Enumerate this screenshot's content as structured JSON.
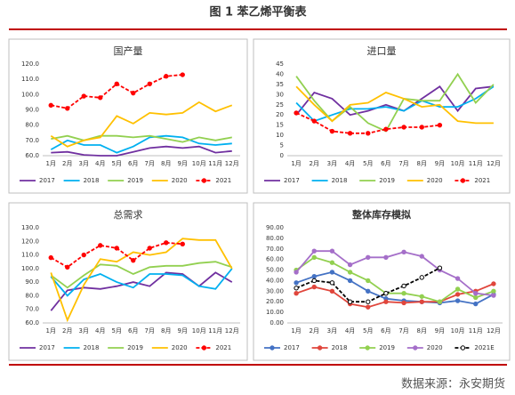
{
  "title": "图 1 苯乙烯平衡表",
  "source": "数据来源：永安期货",
  "chart_data": [
    {
      "type": "line",
      "title": "国产量",
      "categories": [
        "1月",
        "2月",
        "3月",
        "4月",
        "5月",
        "6月",
        "7月",
        "8月",
        "9月",
        "10月",
        "11月",
        "12月"
      ],
      "ylim": [
        60,
        120
      ],
      "yticks": [
        {
          "value": 60,
          "label": "60.0"
        },
        {
          "value": 70,
          "label": "70.0"
        },
        {
          "value": 80,
          "label": "80.0"
        },
        {
          "value": 90,
          "label": "90.0"
        },
        {
          "value": 100,
          "label": "100.0"
        },
        {
          "value": 110,
          "label": "110.0"
        },
        {
          "value": 120,
          "label": "120.0"
        }
      ],
      "grid": false,
      "series": [
        {
          "name": "2017",
          "color": "#7030a0",
          "values": [
            62,
            62.5,
            60.5,
            60,
            60,
            62.5,
            65,
            66,
            65,
            66,
            62,
            63
          ]
        },
        {
          "name": "2018",
          "color": "#00b0f0",
          "values": [
            64,
            70,
            67,
            67,
            62,
            66,
            72,
            73,
            72,
            68,
            67,
            68
          ]
        },
        {
          "name": "2019",
          "color": "#92d050",
          "values": [
            71,
            73,
            70,
            73,
            73,
            72,
            73,
            71,
            69,
            72,
            70,
            72
          ]
        },
        {
          "name": "2020",
          "color": "#ffc000",
          "values": [
            73,
            66,
            70,
            72,
            86,
            81,
            88,
            87,
            88,
            95,
            89,
            93
          ]
        },
        {
          "name": "2021",
          "color": "#ff0000",
          "dashed": true,
          "markers": true,
          "values": [
            93,
            91,
            99,
            98,
            107,
            101,
            107,
            112,
            113,
            null,
            null,
            null
          ]
        }
      ]
    },
    {
      "type": "line",
      "title": "进口量",
      "categories": [
        "1月",
        "2月",
        "3月",
        "4月",
        "5月",
        "6月",
        "7月",
        "8月",
        "9月",
        "10月",
        "11月",
        "12月"
      ],
      "ylim": [
        0,
        45
      ],
      "yticks": [
        0,
        5,
        10,
        15,
        20,
        25,
        30,
        35,
        40,
        45
      ],
      "grid": false,
      "series": [
        {
          "name": "2017",
          "color": "#7030a0",
          "values": [
            20,
            31,
            28,
            20,
            22,
            25,
            22,
            28,
            34,
            22,
            33,
            34
          ]
        },
        {
          "name": "2018",
          "color": "#00b0f0",
          "values": [
            26,
            17,
            20,
            23,
            23,
            24,
            22,
            27,
            24,
            24,
            28,
            34
          ]
        },
        {
          "name": "2019",
          "color": "#92d050",
          "values": [
            39,
            27,
            17,
            24,
            16,
            12,
            28,
            27,
            27,
            40,
            26,
            35
          ]
        },
        {
          "name": "2020",
          "color": "#ffc000",
          "values": [
            34,
            25,
            17,
            25,
            26,
            31,
            28,
            24,
            25,
            17,
            16,
            16
          ]
        },
        {
          "name": "2021",
          "color": "#ff0000",
          "dashed": true,
          "markers": true,
          "values": [
            21,
            17,
            12,
            11,
            11,
            13,
            14,
            14,
            15,
            null,
            null,
            null
          ]
        }
      ]
    },
    {
      "type": "line",
      "title": "总需求",
      "categories": [
        "1月",
        "2月",
        "3月",
        "4月",
        "5月",
        "6月",
        "7月",
        "8月",
        "9月",
        "10月",
        "11月",
        "12月"
      ],
      "ylim": [
        60,
        130
      ],
      "yticks": [
        {
          "value": 60,
          "label": "60.0"
        },
        {
          "value": 70,
          "label": "70.0"
        },
        {
          "value": 80,
          "label": "80.0"
        },
        {
          "value": 90,
          "label": "90.0"
        },
        {
          "value": 100,
          "label": "100.0"
        },
        {
          "value": 110,
          "label": "110.0"
        },
        {
          "value": 120,
          "label": "120.0"
        },
        {
          "value": 130,
          "label": "130.0"
        }
      ],
      "grid": false,
      "series": [
        {
          "name": "2017",
          "color": "#7030a0",
          "values": [
            69,
            84,
            86,
            85,
            87,
            90,
            87,
            97,
            96,
            87,
            97,
            90
          ]
        },
        {
          "name": "2018",
          "color": "#00b0f0",
          "values": [
            94,
            80,
            92,
            96,
            90,
            86,
            96,
            96,
            95,
            87,
            85,
            100
          ]
        },
        {
          "name": "2019",
          "color": "#92d050",
          "values": [
            95,
            86,
            95,
            103,
            102,
            96,
            101,
            102,
            102,
            104,
            105,
            101
          ]
        },
        {
          "name": "2020",
          "color": "#ffc000",
          "values": [
            97,
            62,
            88,
            107,
            105,
            112,
            110,
            112,
            122,
            121,
            121,
            100
          ]
        },
        {
          "name": "2021",
          "color": "#ff0000",
          "dashed": true,
          "markers": true,
          "values": [
            108,
            101,
            110,
            117,
            115,
            106,
            115,
            119,
            118,
            null,
            null,
            null
          ]
        }
      ]
    },
    {
      "type": "line",
      "title": "整体库存模拟",
      "categories": [
        "1月",
        "2月",
        "3月",
        "4月",
        "5月",
        "6月",
        "7月",
        "8月",
        "9月",
        "10月",
        "11月",
        "12月"
      ],
      "ylim": [
        0,
        90
      ],
      "yticks": [
        {
          "value": 0,
          "label": "0.00"
        },
        {
          "value": 10,
          "label": "10.00"
        },
        {
          "value": 20,
          "label": "20.00"
        },
        {
          "value": 30,
          "label": "30.00"
        },
        {
          "value": 40,
          "label": "40.00"
        },
        {
          "value": 50,
          "label": "50.00"
        },
        {
          "value": 60,
          "label": "60.00"
        },
        {
          "value": 70,
          "label": "70.00"
        },
        {
          "value": 80,
          "label": "80.00"
        },
        {
          "value": 90,
          "label": "90.00"
        }
      ],
      "grid": false,
      "series": [
        {
          "name": "2017",
          "color": "#4472c4",
          "markers": true,
          "values": [
            38,
            44,
            48,
            40,
            30,
            23,
            21,
            20,
            19,
            21,
            18,
            27
          ]
        },
        {
          "name": "2018",
          "color": "#e0463c",
          "markers": true,
          "values": [
            28,
            34,
            30,
            18,
            15,
            20,
            19,
            20,
            20,
            27,
            30,
            37
          ]
        },
        {
          "name": "2019",
          "color": "#92d050",
          "markers": true,
          "values": [
            50,
            62,
            57,
            48,
            40,
            28,
            28,
            25,
            20,
            32,
            24,
            30
          ]
        },
        {
          "name": "2020",
          "color": "#a56fc9",
          "markers": true,
          "values": [
            48,
            68,
            68,
            55,
            62,
            62,
            67,
            63,
            50,
            42,
            28,
            26
          ]
        },
        {
          "name": "2021E",
          "color": "#000000",
          "dashed": true,
          "markers": true,
          "values": [
            33,
            40,
            38,
            20,
            20,
            28,
            35,
            43,
            52,
            null,
            null,
            null
          ]
        }
      ]
    }
  ]
}
